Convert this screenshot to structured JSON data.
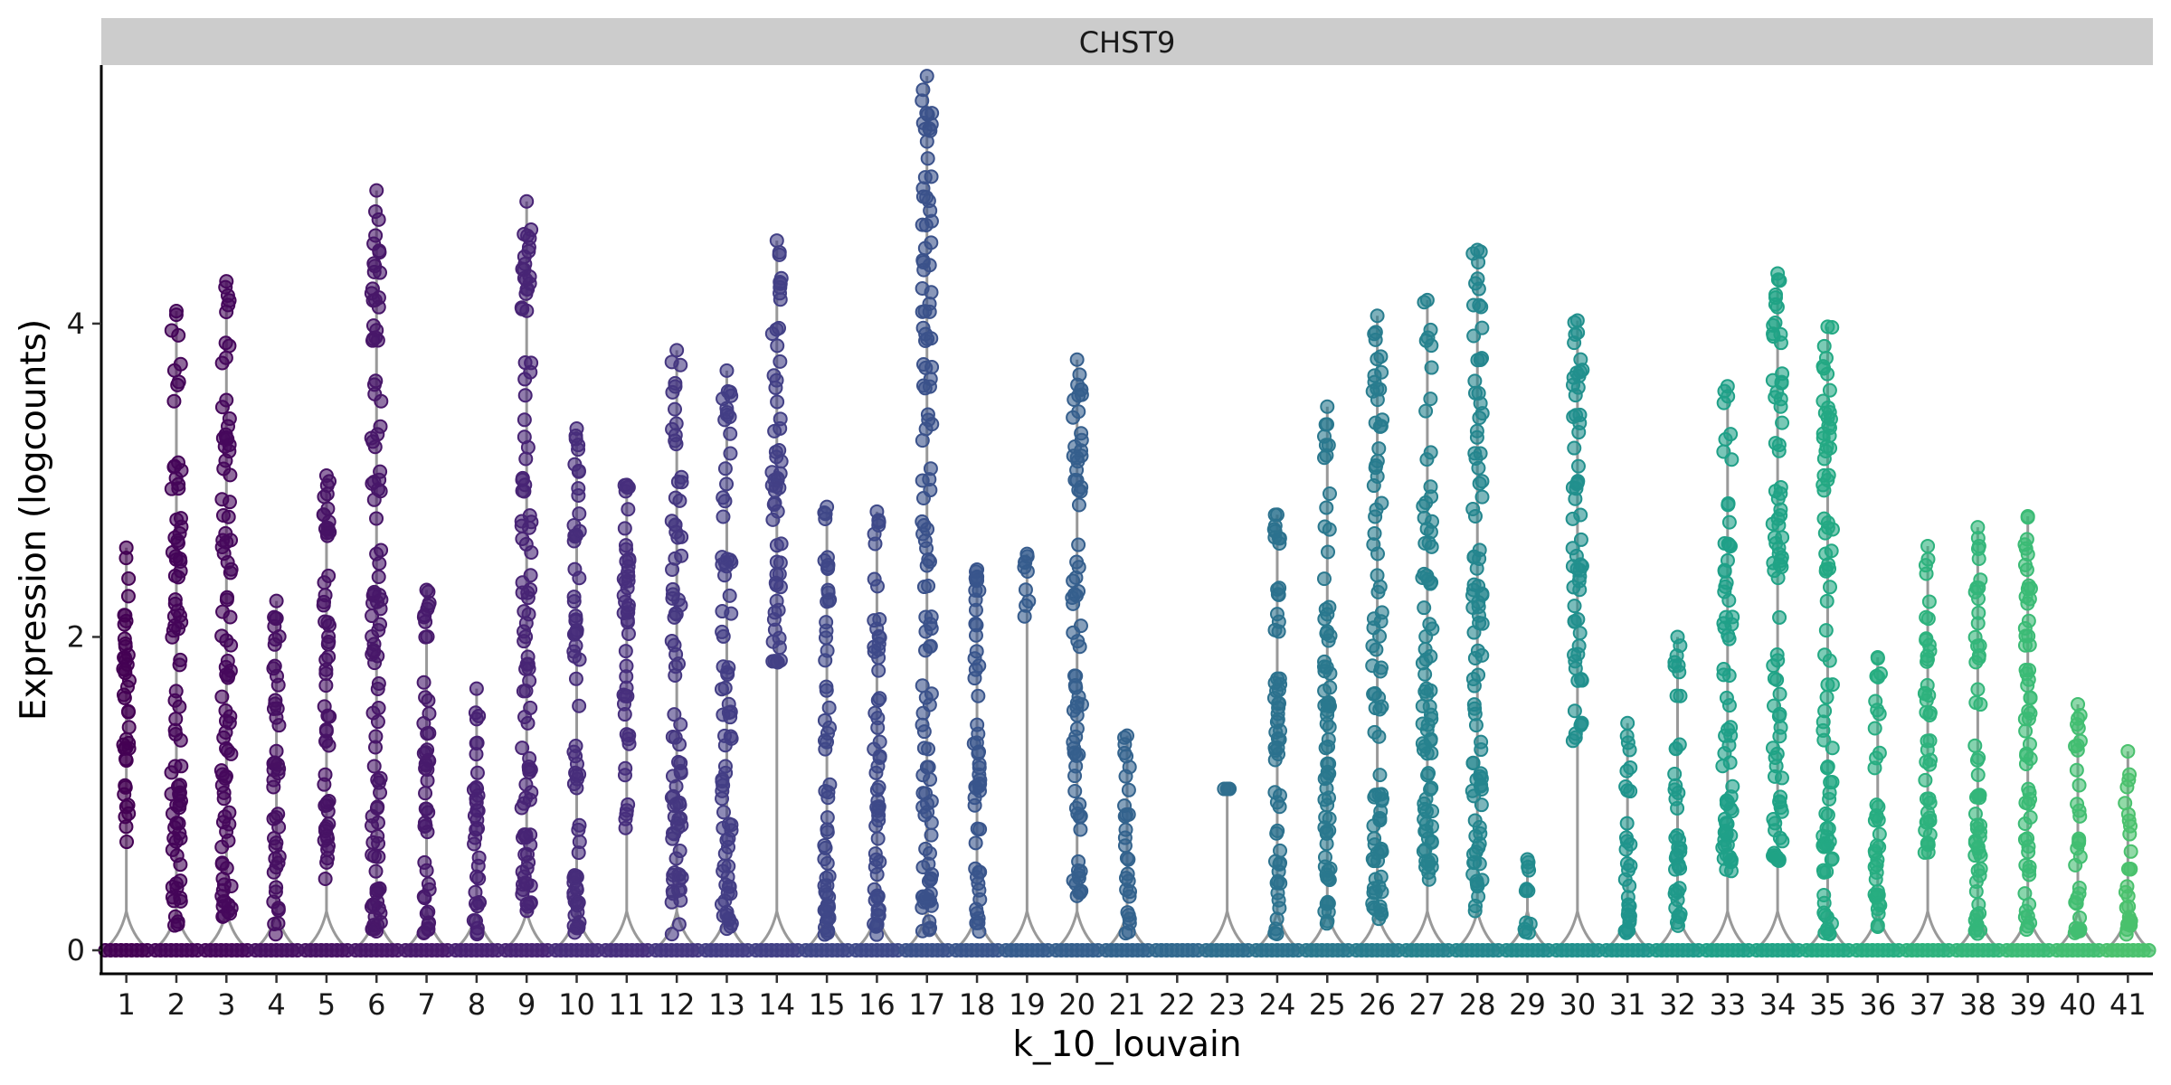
{
  "chart_data": {
    "type": "violin",
    "facet_title": "CHST9",
    "xlabel": "k_10_louvain",
    "ylabel": "Expression (logcounts)",
    "ylim": [
      -0.15,
      5.65
    ],
    "yticks": [
      0,
      2,
      4
    ],
    "grid": false,
    "legend": "none",
    "categories": [
      "1",
      "2",
      "3",
      "4",
      "5",
      "6",
      "7",
      "8",
      "9",
      "10",
      "11",
      "12",
      "13",
      "14",
      "15",
      "16",
      "17",
      "18",
      "19",
      "20",
      "21",
      "22",
      "23",
      "24",
      "25",
      "26",
      "27",
      "28",
      "29",
      "30",
      "31",
      "32",
      "33",
      "34",
      "35",
      "36",
      "37",
      "38",
      "39",
      "40",
      "41"
    ],
    "colors": [
      "#440154",
      "#450559",
      "#46085c",
      "#471063",
      "#471365",
      "#481769",
      "#481a6c",
      "#482173",
      "#482475",
      "#472d7b",
      "#472f7d",
      "#453781",
      "#433e85",
      "#424086",
      "#3f4788",
      "#3e4989",
      "#3b528b",
      "#39558c",
      "#365c8d",
      "#355f8d",
      "#33638d",
      "#31688e",
      "#2e6e8e",
      "#2c728e",
      "#2a788e",
      "#287c8e",
      "#26828e",
      "#24868e",
      "#228b8d",
      "#21908d",
      "#1f948c",
      "#1f9a8a",
      "#1fa088",
      "#20a386",
      "#23a983",
      "#27ad81",
      "#2db27d",
      "#33b67a",
      "#3bbb75",
      "#42be71",
      "#4ac16d"
    ],
    "series_max": [
      2.57,
      4.08,
      4.27,
      2.23,
      3.03,
      4.85,
      2.3,
      1.67,
      4.78,
      3.33,
      2.97,
      3.83,
      3.7,
      4.53,
      2.83,
      2.8,
      5.58,
      2.43,
      2.53,
      3.77,
      1.37,
      0,
      1.03,
      2.78,
      3.47,
      4.05,
      4.15,
      4.47,
      0.58,
      4.02,
      1.45,
      2.0,
      3.6,
      4.32,
      3.98,
      1.87,
      2.58,
      2.7,
      2.77,
      1.57,
      1.27
    ],
    "series_min_nonzero": [
      0.68,
      0.15,
      0.2,
      0.1,
      0.45,
      0.12,
      0.1,
      0.1,
      0.25,
      0.1,
      0.77,
      0.1,
      0.1,
      1.83,
      0.1,
      0.1,
      0.12,
      0.1,
      2.1,
      0.33,
      0.1,
      0,
      1.03,
      0.1,
      0.15,
      0.2,
      0.45,
      0.25,
      0.1,
      1.27,
      0.1,
      0.15,
      0.5,
      0.57,
      0.1,
      0.15,
      0.6,
      0.1,
      0.1,
      0.1,
      0.1
    ]
  }
}
